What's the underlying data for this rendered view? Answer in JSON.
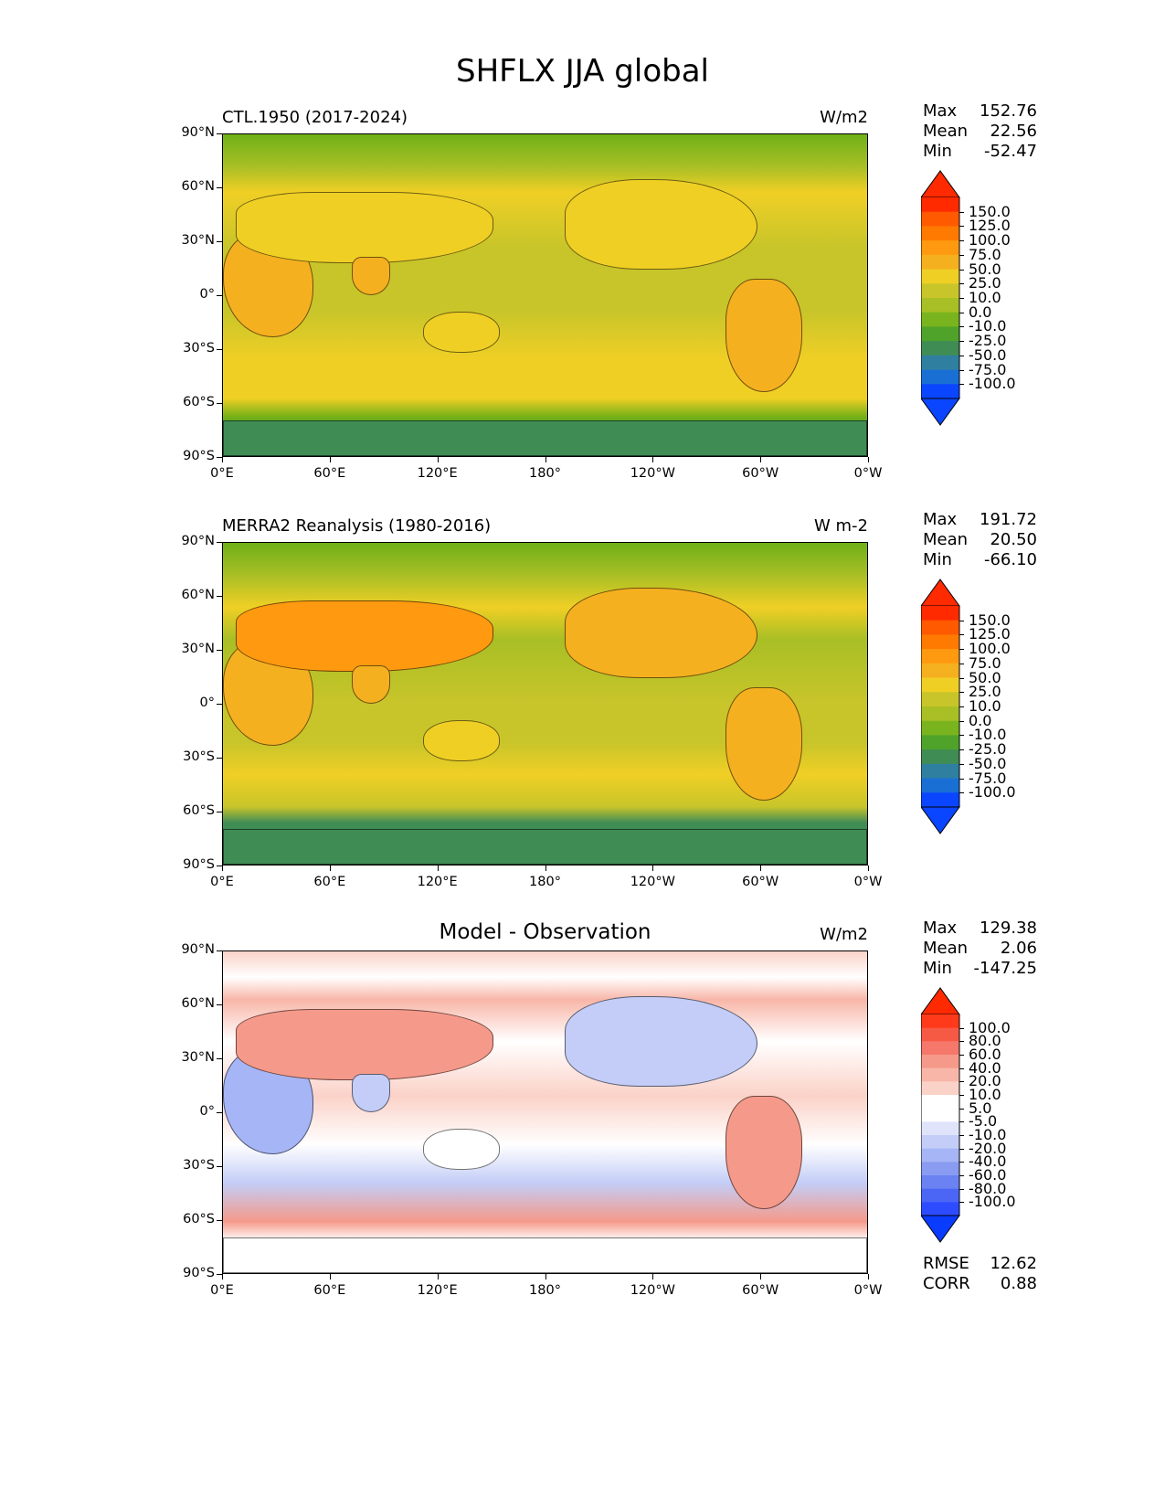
{
  "figure": {
    "title": "SHFLX JJA global"
  },
  "panels": [
    {
      "id": "model",
      "left_title": "CTL.1950 (2017-2024)",
      "center_title": "",
      "units": "W/m2",
      "stats": [
        {
          "label": "Max",
          "value": "152.76"
        },
        {
          "label": "Mean",
          "value": "22.56"
        },
        {
          "label": "Min",
          "value": "-52.47"
        }
      ],
      "colorbar_labels": [
        "150.0",
        "125.0",
        "100.0",
        "75.0",
        "50.0",
        "25.0",
        "10.0",
        "0.0",
        "-10.0",
        "-25.0",
        "-50.0",
        "-75.0",
        "-100.0"
      ],
      "colorbar_colors": [
        "#ff2a00",
        "#ff5a00",
        "#ff7a00",
        "#ff9a10",
        "#f5b020",
        "#f0cf25",
        "#c8c52a",
        "#a8bf25",
        "#79b41e",
        "#4fa32a",
        "#3f8c55",
        "#2f7fa0",
        "#1a6fd5",
        "#0a46ff"
      ],
      "extreme_colors": {
        "over": "#ff2a00",
        "under": "#0a46ff"
      }
    },
    {
      "id": "obs",
      "left_title": "MERRA2 Reanalysis (1980-2016)",
      "center_title": "",
      "units": "W m-2",
      "stats": [
        {
          "label": "Max",
          "value": "191.72"
        },
        {
          "label": "Mean",
          "value": "20.50"
        },
        {
          "label": "Min",
          "value": "-66.10"
        }
      ],
      "colorbar_labels": [
        "150.0",
        "125.0",
        "100.0",
        "75.0",
        "50.0",
        "25.0",
        "10.0",
        "0.0",
        "-10.0",
        "-25.0",
        "-50.0",
        "-75.0",
        "-100.0"
      ],
      "colorbar_colors": [
        "#ff2a00",
        "#ff5a00",
        "#ff7a00",
        "#ff9a10",
        "#f5b020",
        "#f0cf25",
        "#c8c52a",
        "#a8bf25",
        "#79b41e",
        "#4fa32a",
        "#3f8c55",
        "#2f7fa0",
        "#1a6fd5",
        "#0a46ff"
      ],
      "extreme_colors": {
        "over": "#ff2a00",
        "under": "#0a46ff"
      }
    },
    {
      "id": "diff",
      "left_title": "",
      "center_title": "Model - Observation",
      "units": "W/m2",
      "stats": [
        {
          "label": "Max",
          "value": "129.38"
        },
        {
          "label": "Mean",
          "value": "2.06"
        },
        {
          "label": "Min",
          "value": "-147.25"
        }
      ],
      "extra_stats": [
        {
          "label": "RMSE",
          "value": "12.62"
        },
        {
          "label": "CORR",
          "value": "0.88"
        }
      ],
      "colorbar_labels": [
        "100.0",
        "80.0",
        "60.0",
        "40.0",
        "20.0",
        "10.0",
        "5.0",
        "-5.0",
        "-10.0",
        "-20.0",
        "-40.0",
        "-60.0",
        "-80.0",
        "-100.0"
      ],
      "colorbar_colors": [
        "#ff3a1a",
        "#f65a45",
        "#f5786a",
        "#f59a8a",
        "#f8b6a8",
        "#fbd2c8",
        "#ffffff",
        "#ffffff",
        "#dfe4fb",
        "#c3cdf7",
        "#a6b5f5",
        "#8a9cf2",
        "#6a82f2",
        "#4b66f5",
        "#2e4cff"
      ],
      "extreme_colors": {
        "over": "#ff2a00",
        "under": "#0a3cff"
      }
    }
  ],
  "axes": {
    "lat_ticks": [
      "90°N",
      "60°N",
      "30°N",
      "0°",
      "30°S",
      "60°S",
      "90°S"
    ],
    "lon_ticks": [
      "0°E",
      "60°E",
      "120°E",
      "180°",
      "120°W",
      "60°W",
      "0°W"
    ]
  }
}
